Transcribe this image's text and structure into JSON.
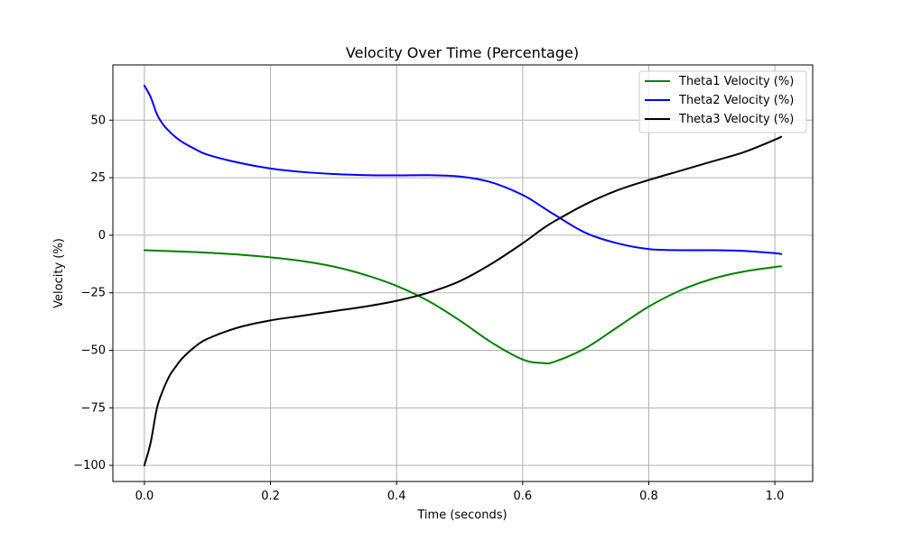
{
  "chart_data": {
    "type": "line",
    "title": "Velocity Over Time (Percentage)",
    "xlabel": "Time (seconds)",
    "ylabel": "Velocity (%)",
    "xlim": [
      -0.05,
      1.06
    ],
    "ylim": [
      -107,
      74
    ],
    "x_ticks": [
      0.0,
      0.2,
      0.4,
      0.6,
      0.8,
      1.0
    ],
    "x_tick_labels": [
      "0.0",
      "0.2",
      "0.4",
      "0.6",
      "0.8",
      "1.0"
    ],
    "y_ticks": [
      -100,
      -75,
      -50,
      -25,
      0,
      25,
      50
    ],
    "y_tick_labels": [
      "−100",
      "−75",
      "−50",
      "−25",
      "0",
      "25",
      "50"
    ],
    "grid": true,
    "legend": "top-right",
    "x": [
      0.0,
      0.01,
      0.02,
      0.03,
      0.04,
      0.05,
      0.06,
      0.08,
      0.1,
      0.15,
      0.2,
      0.25,
      0.3,
      0.35,
      0.4,
      0.45,
      0.5,
      0.55,
      0.6,
      0.63,
      0.65,
      0.7,
      0.75,
      0.8,
      0.85,
      0.9,
      0.95,
      1.0,
      1.01
    ],
    "series": [
      {
        "name": "Theta1 Velocity (%)",
        "color": "#008000",
        "values": [
          -6.5,
          -6.6,
          -6.7,
          -6.8,
          -6.9,
          -7.0,
          -7.1,
          -7.3,
          -7.6,
          -8.4,
          -9.6,
          -11.2,
          -13.6,
          -17.2,
          -22.0,
          -28.5,
          -37.0,
          -46.5,
          -54.0,
          -55.5,
          -55.0,
          -49.0,
          -40.0,
          -31.0,
          -24.0,
          -19.0,
          -15.8,
          -13.8,
          -13.5
        ]
      },
      {
        "name": "Theta2 Velocity (%)",
        "color": "#0000ff",
        "values": [
          65.0,
          60.0,
          52.5,
          48.0,
          45.0,
          42.5,
          40.5,
          37.5,
          35.0,
          31.5,
          29.0,
          27.5,
          26.6,
          26.1,
          26.0,
          26.1,
          25.5,
          23.0,
          17.5,
          12.5,
          9.0,
          1.0,
          -3.5,
          -6.0,
          -6.5,
          -6.5,
          -6.8,
          -7.8,
          -8.2
        ]
      },
      {
        "name": "Theta3 Velocity (%)",
        "color": "#000000",
        "values": [
          -100.0,
          -90.0,
          -75.0,
          -67.0,
          -61.0,
          -57.0,
          -53.5,
          -48.5,
          -45.0,
          -40.0,
          -37.0,
          -35.0,
          -33.0,
          -31.0,
          -28.5,
          -25.0,
          -20.0,
          -12.5,
          -3.5,
          2.5,
          6.0,
          13.5,
          19.5,
          24.0,
          28.0,
          32.0,
          36.0,
          41.5,
          42.8
        ]
      }
    ]
  }
}
